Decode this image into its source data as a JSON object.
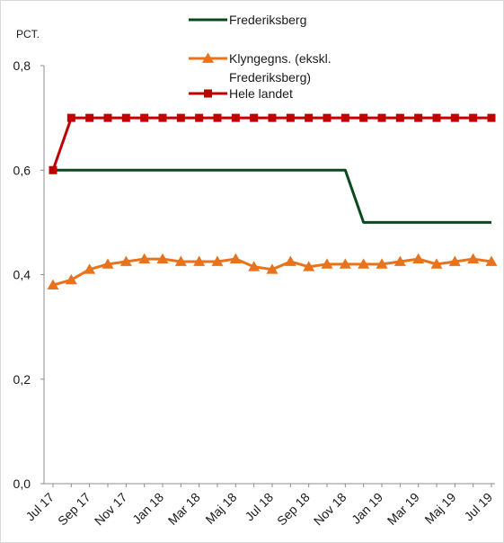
{
  "chart_data": {
    "type": "line",
    "ylabel": "PCT.",
    "ylim": [
      0,
      0.8
    ],
    "yticks": [
      "0,0",
      "0,2",
      "0,4",
      "0,6",
      "0,8"
    ],
    "ytick_values": [
      0,
      0.2,
      0.4,
      0.6,
      0.8
    ],
    "x": [
      "Jul 17",
      "Aug 17",
      "Sep 17",
      "Okt 17",
      "Nov 17",
      "Dec 17",
      "Jan 18",
      "Feb 18",
      "Mar 18",
      "Apr 18",
      "Maj 18",
      "Jun 18",
      "Jul 18",
      "Aug 18",
      "Sep 18",
      "Okt 18",
      "Nov 18",
      "Dec 18",
      "Jan 19",
      "Feb 19",
      "Mar 19",
      "Apr 19",
      "Maj 19",
      "Jun 19",
      "Jul 19"
    ],
    "xtick_labels": [
      "Jul 17",
      "Sep 17",
      "Nov 17",
      "Jan 18",
      "Mar 18",
      "Maj 18",
      "Jul 18",
      "Sep 18",
      "Nov 18",
      "Jan 19",
      "Mar 19",
      "Maj 19",
      "Jul 19"
    ],
    "legend_position": "top",
    "grid": false,
    "series": [
      {
        "name": "Frederiksberg",
        "color": "#0b4a1e",
        "marker": "none",
        "values": [
          0.6,
          0.6,
          0.6,
          0.6,
          0.6,
          0.6,
          0.6,
          0.6,
          0.6,
          0.6,
          0.6,
          0.6,
          0.6,
          0.6,
          0.6,
          0.6,
          0.6,
          0.5,
          0.5,
          0.5,
          0.5,
          0.5,
          0.5,
          0.5,
          0.5
        ]
      },
      {
        "name": "Klyngegns. (ekskl. Frederiksberg)",
        "legend_lines": [
          "Klyngegns. (ekskl.",
          "Frederiksberg)"
        ],
        "color": "#e8731c",
        "marker": "triangle",
        "values": [
          0.38,
          0.39,
          0.41,
          0.42,
          0.425,
          0.43,
          0.43,
          0.425,
          0.425,
          0.425,
          0.43,
          0.415,
          0.41,
          0.425,
          0.415,
          0.42,
          0.42,
          0.42,
          0.42,
          0.425,
          0.43,
          0.42,
          0.425,
          0.43,
          0.425
        ]
      },
      {
        "name": "Hele landet",
        "color": "#c00000",
        "marker": "square",
        "values": [
          0.6,
          0.7,
          0.7,
          0.7,
          0.7,
          0.7,
          0.7,
          0.7,
          0.7,
          0.7,
          0.7,
          0.7,
          0.7,
          0.7,
          0.7,
          0.7,
          0.7,
          0.7,
          0.7,
          0.7,
          0.7,
          0.7,
          0.7,
          0.7,
          0.7
        ]
      }
    ]
  }
}
